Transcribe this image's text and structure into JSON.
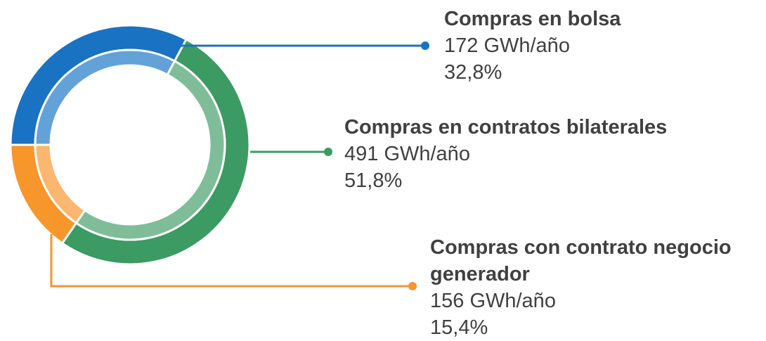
{
  "chart_data": {
    "type": "pie",
    "categories": [
      "Compras en bolsa",
      "Compras en contratos bilaterales",
      "Compras con contrato negocio generador"
    ],
    "values": [
      32.8,
      51.8,
      15.4
    ],
    "value_labels": [
      "32,8%",
      "51,8%",
      "15,4%"
    ],
    "energy_labels": [
      "172 GWh/año",
      "491 GWh/año",
      "156 GWh/año"
    ],
    "colors": [
      "#1a72c2",
      "#3b9b63",
      "#f7962b"
    ],
    "light_colors": [
      "#62a2d9",
      "#7fbd99",
      "#fbb770"
    ]
  }
}
